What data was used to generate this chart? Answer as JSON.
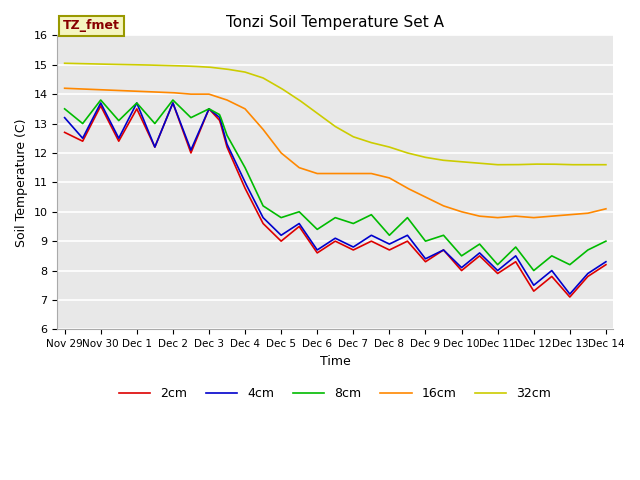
{
  "title": "Tonzi Soil Temperature Set A",
  "xlabel": "Time",
  "ylabel": "Soil Temperature (C)",
  "ylim": [
    6.0,
    16.0
  ],
  "yticks": [
    6.0,
    7.0,
    8.0,
    9.0,
    10.0,
    11.0,
    12.0,
    13.0,
    14.0,
    15.0,
    16.0
  ],
  "legend_label": "TZ_fmet",
  "legend_box_color": "#f5f5c0",
  "legend_box_edge": "#999900",
  "legend_text_color": "#880000",
  "fig_bg_color": "#ffffff",
  "plot_bg_color": "#e8e8e8",
  "grid_color": "#ffffff",
  "series": {
    "2cm": {
      "color": "#dd0000",
      "lw": 1.2
    },
    "4cm": {
      "color": "#0000cc",
      "lw": 1.2
    },
    "8cm": {
      "color": "#00bb00",
      "lw": 1.2
    },
    "16cm": {
      "color": "#ff8800",
      "lw": 1.2
    },
    "32cm": {
      "color": "#cccc00",
      "lw": 1.2
    }
  },
  "tick_labels": [
    "Nov 29",
    "Nov 30",
    "Dec 1",
    "Dec 2",
    "Dec 3",
    "Dec 4",
    "Dec 5",
    "Dec 6",
    "Dec 7",
    "Dec 8",
    "Dec 9",
    "Dec 10",
    "Dec 11",
    "Dec 12",
    "Dec 13",
    "Dec 14"
  ],
  "n_points": 361
}
